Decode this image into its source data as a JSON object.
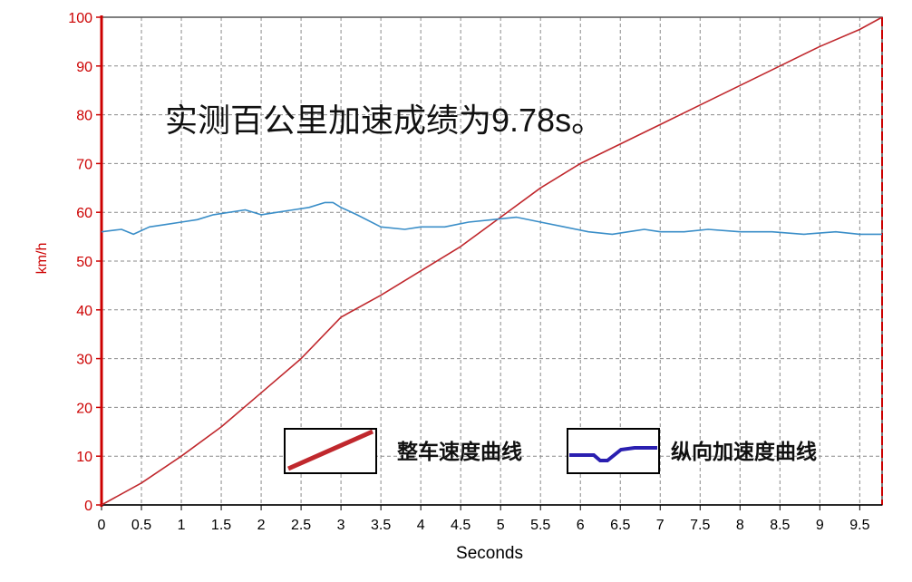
{
  "chart_data": {
    "type": "line",
    "annotation": "实测百公里加速成绩为9.78s。",
    "xlabel": "Seconds",
    "ylabel": "km/h",
    "xlim": [
      0,
      9.78
    ],
    "ylim": [
      0,
      100
    ],
    "x_ticks": [
      "0",
      "0.5",
      "1",
      "1.5",
      "2",
      "2.5",
      "3",
      "3.5",
      "4",
      "4.5",
      "5",
      "5.5",
      "6",
      "6.5",
      "7",
      "7.5",
      "8",
      "8.5",
      "9",
      "9.5"
    ],
    "y_ticks": [
      "0",
      "10",
      "20",
      "30",
      "40",
      "50",
      "60",
      "70",
      "80",
      "90",
      "100"
    ],
    "grid": true,
    "legend": [
      "整车速度曲线",
      "纵向加速度曲线"
    ],
    "colors": {
      "speed": "#c0282d",
      "accel": "#3a8ec8",
      "legend_accel": "#2a1fb0",
      "axis_red": "#cc0000",
      "frame": "#555555",
      "grid": "#8a8a8a"
    },
    "series": [
      {
        "name": "整车速度曲线",
        "x": [
          0,
          0.5,
          1,
          1.5,
          2,
          2.5,
          3,
          3.5,
          4,
          4.5,
          5,
          5.5,
          6,
          6.5,
          7,
          7.5,
          8,
          8.5,
          9,
          9.5,
          9.78
        ],
        "y": [
          0,
          4.5,
          10,
          16,
          23,
          30,
          38.5,
          43,
          48,
          53,
          59,
          65,
          70,
          74,
          78,
          82,
          86,
          90,
          94,
          97.5,
          100
        ]
      },
      {
        "name": "纵向加速度曲线",
        "x": [
          0,
          0.25,
          0.4,
          0.6,
          0.8,
          1.0,
          1.2,
          1.4,
          1.6,
          1.8,
          2.0,
          2.2,
          2.4,
          2.6,
          2.8,
          2.9,
          3.0,
          3.2,
          3.5,
          3.8,
          4.0,
          4.3,
          4.6,
          4.9,
          5.2,
          5.5,
          5.8,
          6.1,
          6.4,
          6.6,
          6.8,
          7.0,
          7.3,
          7.6,
          8.0,
          8.4,
          8.8,
          9.2,
          9.5,
          9.78
        ],
        "y": [
          56,
          56.5,
          55.5,
          57,
          57.5,
          58,
          58.5,
          59.5,
          60,
          60.5,
          59.5,
          60,
          60.5,
          61,
          62,
          62,
          61,
          59.5,
          57,
          56.5,
          57,
          57,
          58,
          58.5,
          59,
          58,
          57,
          56,
          55.5,
          56,
          56.5,
          56,
          56,
          56.5,
          56,
          56,
          55.5,
          56,
          55.5,
          55.5
        ]
      }
    ]
  }
}
